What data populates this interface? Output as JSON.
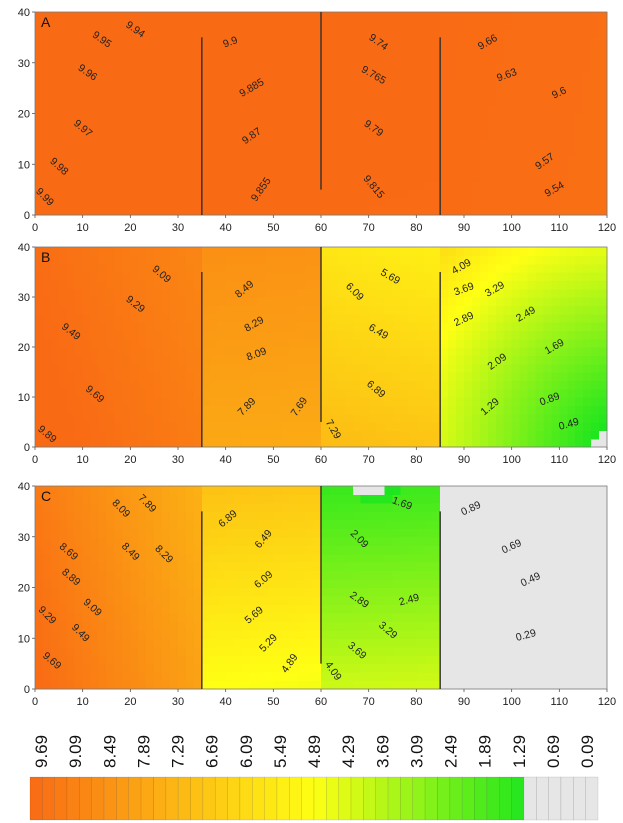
{
  "chart_data": [
    {
      "type": "heatmap",
      "panel": "A",
      "xlim": [
        0,
        120
      ],
      "ylim": [
        0,
        40
      ],
      "xticks": [
        0,
        10,
        20,
        30,
        40,
        50,
        60,
        70,
        80,
        90,
        100,
        110,
        120
      ],
      "yticks": [
        0,
        10,
        20,
        30,
        40
      ],
      "walls": [
        {
          "x": 35,
          "y_range": [
            0,
            35
          ]
        },
        {
          "x": 60,
          "y_range": [
            5,
            40
          ]
        },
        {
          "x": 85,
          "y_range": [
            0,
            35
          ]
        }
      ],
      "contour_labels": [
        {
          "text": "9.95",
          "x": 14,
          "y": 34.5,
          "angle": 35
        },
        {
          "text": "9.94",
          "x": 21,
          "y": 36.5,
          "angle": 35
        },
        {
          "text": "9.96",
          "x": 11,
          "y": 28,
          "angle": 35
        },
        {
          "text": "9.97",
          "x": 10,
          "y": 17,
          "angle": 40
        },
        {
          "text": "9.98",
          "x": 5,
          "y": 9.5,
          "angle": 42
        },
        {
          "text": "9.99",
          "x": 2,
          "y": 3.5,
          "angle": 45
        },
        {
          "text": "9.9",
          "x": 41,
          "y": 34,
          "angle": -20
        },
        {
          "text": "9.885",
          "x": 45.5,
          "y": 25,
          "angle": -30
        },
        {
          "text": "9.87",
          "x": 45.5,
          "y": 15.5,
          "angle": -35
        },
        {
          "text": "9.855",
          "x": 47.5,
          "y": 5,
          "angle": -55
        },
        {
          "text": "9.74",
          "x": 72,
          "y": 34,
          "angle": 35
        },
        {
          "text": "9.765",
          "x": 71,
          "y": 27.5,
          "angle": 30
        },
        {
          "text": "9.79",
          "x": 71,
          "y": 17,
          "angle": 35
        },
        {
          "text": "9.815",
          "x": 71,
          "y": 5.5,
          "angle": 50
        },
        {
          "text": "9.66",
          "x": 95,
          "y": 34,
          "angle": -30
        },
        {
          "text": "9.63",
          "x": 99,
          "y": 27.5,
          "angle": -20
        },
        {
          "text": "9.6",
          "x": 110,
          "y": 24,
          "angle": -25
        },
        {
          "text": "9.57",
          "x": 107,
          "y": 10.5,
          "angle": -35
        },
        {
          "text": "9.54",
          "x": 109,
          "y": 5,
          "angle": -30
        }
      ]
    },
    {
      "type": "heatmap",
      "panel": "B",
      "xlim": [
        0,
        120
      ],
      "ylim": [
        0,
        40
      ],
      "xticks": [
        0,
        10,
        20,
        30,
        40,
        50,
        60,
        70,
        80,
        90,
        100,
        110,
        120
      ],
      "yticks": [
        0,
        10,
        20,
        30,
        40
      ],
      "walls": [
        {
          "x": 35,
          "y_range": [
            0,
            35
          ]
        },
        {
          "x": 60,
          "y_range": [
            5,
            40
          ]
        },
        {
          "x": 85,
          "y_range": [
            0,
            35
          ]
        }
      ],
      "contour_labels": [
        {
          "text": "9.09",
          "x": 26.5,
          "y": 34.5,
          "angle": 40
        },
        {
          "text": "9.29",
          "x": 21,
          "y": 28.5,
          "angle": 38
        },
        {
          "text": "9.49",
          "x": 7.5,
          "y": 23,
          "angle": 38
        },
        {
          "text": "9.69",
          "x": 12.5,
          "y": 10.5,
          "angle": 40
        },
        {
          "text": "9.89",
          "x": 2.5,
          "y": 2.5,
          "angle": 40
        },
        {
          "text": "8.49",
          "x": 44,
          "y": 31.5,
          "angle": -40
        },
        {
          "text": "8.29",
          "x": 46,
          "y": 24.5,
          "angle": -30
        },
        {
          "text": "8.09",
          "x": 46.5,
          "y": 18.5,
          "angle": -20
        },
        {
          "text": "7.89",
          "x": 44.5,
          "y": 8,
          "angle": -45
        },
        {
          "text": "7.69",
          "x": 55.5,
          "y": 8,
          "angle": -55
        },
        {
          "text": "7.29",
          "x": 62.5,
          "y": 3.5,
          "angle": 60
        },
        {
          "text": "5.69",
          "x": 74.5,
          "y": 34,
          "angle": 30
        },
        {
          "text": "6.09",
          "x": 67,
          "y": 31,
          "angle": 45
        },
        {
          "text": "6.49",
          "x": 72,
          "y": 23,
          "angle": 30
        },
        {
          "text": "6.89",
          "x": 71.5,
          "y": 11.5,
          "angle": 40
        },
        {
          "text": "4.09",
          "x": 89.5,
          "y": 36,
          "angle": -30
        },
        {
          "text": "3.69",
          "x": 90,
          "y": 31.5,
          "angle": -20
        },
        {
          "text": "3.29",
          "x": 96.5,
          "y": 31.5,
          "angle": -30
        },
        {
          "text": "2.89",
          "x": 90,
          "y": 25.5,
          "angle": -25
        },
        {
          "text": "2.49",
          "x": 103,
          "y": 26.5,
          "angle": -30
        },
        {
          "text": "2.09",
          "x": 97,
          "y": 17,
          "angle": -35
        },
        {
          "text": "1.69",
          "x": 109,
          "y": 20,
          "angle": -30
        },
        {
          "text": "1.29",
          "x": 95.5,
          "y": 8,
          "angle": -40
        },
        {
          "text": "0.89",
          "x": 108,
          "y": 9.5,
          "angle": -20
        },
        {
          "text": "0.49",
          "x": 112,
          "y": 4.5,
          "angle": -15
        }
      ]
    },
    {
      "type": "heatmap",
      "panel": "C",
      "xlim": [
        0,
        120
      ],
      "ylim": [
        0,
        40
      ],
      "xticks": [
        0,
        10,
        20,
        30,
        40,
        50,
        60,
        70,
        80,
        90,
        100,
        110,
        120
      ],
      "yticks": [
        0,
        10,
        20,
        30,
        40
      ],
      "walls": [
        {
          "x": 35,
          "y_range": [
            0,
            35
          ]
        },
        {
          "x": 60,
          "y_range": [
            5,
            40
          ]
        },
        {
          "x": 85,
          "y_range": [
            0,
            35
          ]
        }
      ],
      "contour_labels": [
        {
          "text": "7.89",
          "x": 23.5,
          "y": 36.5,
          "angle": 45
        },
        {
          "text": "8.09",
          "x": 18,
          "y": 35.5,
          "angle": 45
        },
        {
          "text": "8.49",
          "x": 20,
          "y": 27,
          "angle": 45
        },
        {
          "text": "8.29",
          "x": 27,
          "y": 26.5,
          "angle": 45
        },
        {
          "text": "8.69",
          "x": 7,
          "y": 27,
          "angle": 40
        },
        {
          "text": "8.89",
          "x": 7.5,
          "y": 22,
          "angle": 40
        },
        {
          "text": "9.09",
          "x": 12,
          "y": 16,
          "angle": 42
        },
        {
          "text": "9.29",
          "x": 2.5,
          "y": 14.5,
          "angle": 45
        },
        {
          "text": "9.49",
          "x": 9.5,
          "y": 11,
          "angle": 45
        },
        {
          "text": "9.69",
          "x": 3.5,
          "y": 5.5,
          "angle": 40
        },
        {
          "text": "6.89",
          "x": 40.5,
          "y": 33.5,
          "angle": -40
        },
        {
          "text": "6.49",
          "x": 48,
          "y": 29.5,
          "angle": -50
        },
        {
          "text": "6.09",
          "x": 48,
          "y": 21.5,
          "angle": -40
        },
        {
          "text": "5.69",
          "x": 46,
          "y": 14.5,
          "angle": -40
        },
        {
          "text": "5.29",
          "x": 49,
          "y": 9,
          "angle": -45
        },
        {
          "text": "4.89",
          "x": 53.5,
          "y": 5,
          "angle": -55
        },
        {
          "text": "4.09",
          "x": 62.5,
          "y": 3.5,
          "angle": 55
        },
        {
          "text": "1.69",
          "x": 77,
          "y": 36.5,
          "angle": 20
        },
        {
          "text": "2.09",
          "x": 68,
          "y": 29.5,
          "angle": 45
        },
        {
          "text": "2.89",
          "x": 68,
          "y": 17.5,
          "angle": 35
        },
        {
          "text": "2.49",
          "x": 78.5,
          "y": 17.5,
          "angle": -15
        },
        {
          "text": "3.29",
          "x": 74,
          "y": 11.5,
          "angle": 40
        },
        {
          "text": "3.69",
          "x": 67.5,
          "y": 7.5,
          "angle": 40
        },
        {
          "text": "0.89",
          "x": 91.5,
          "y": 35.5,
          "angle": -25
        },
        {
          "text": "0.69",
          "x": 100,
          "y": 28,
          "angle": -25
        },
        {
          "text": "0.49",
          "x": 104,
          "y": 21.5,
          "angle": -25
        },
        {
          "text": "0.29",
          "x": 103,
          "y": 10.5,
          "angle": -15
        }
      ]
    }
  ],
  "colorbar": {
    "labels": [
      "9.69",
      "9.09",
      "8.49",
      "7.89",
      "7.29",
      "6.69",
      "6.09",
      "5.49",
      "4.89",
      "4.29",
      "3.69",
      "3.09",
      "2.49",
      "1.89",
      "1.29",
      "0.69",
      "0.09"
    ],
    "min": 0.09,
    "max": 9.69,
    "gray_below": 1.29,
    "colors": {
      "orange": "#f96a14",
      "yellow": "#ffff14",
      "green": "#1ee61e",
      "gray": "#e6e6e6"
    }
  },
  "styles": {
    "wall_color": "#303030",
    "contour_color": "#a06040",
    "label_color": "#222222"
  }
}
